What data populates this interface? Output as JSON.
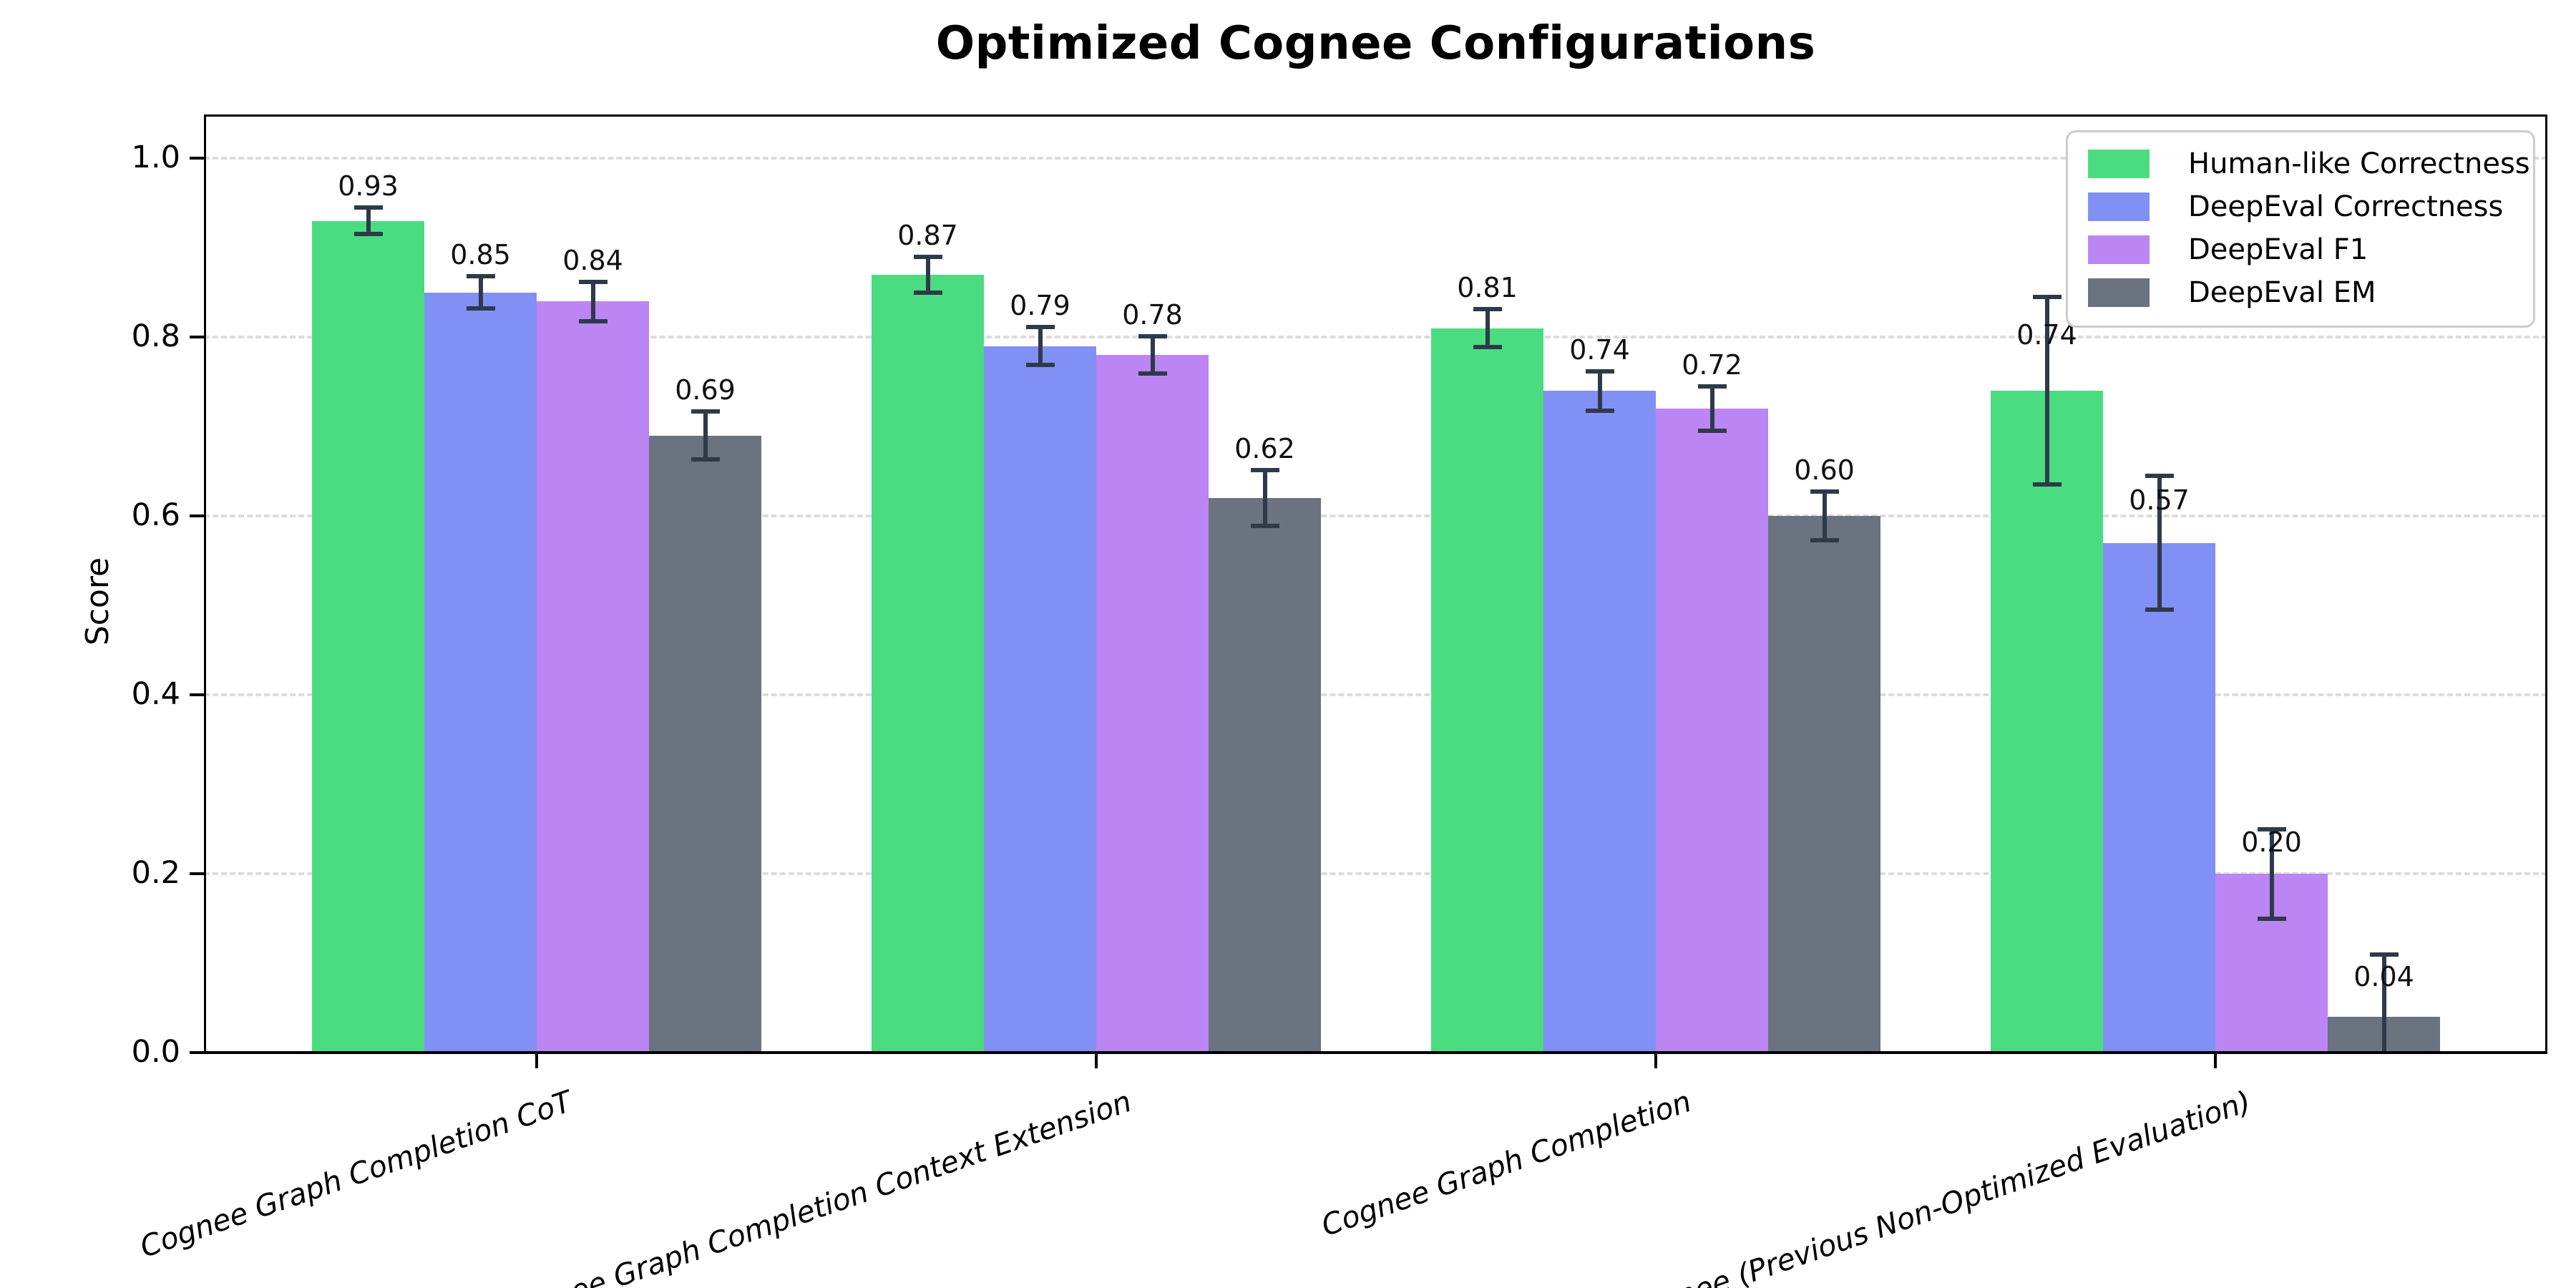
{
  "title": "Optimized Cognee Configurations",
  "chart_data": {
    "type": "bar",
    "title": "Optimized Cognee Configurations",
    "xlabel": "",
    "ylabel": "Score",
    "categories": [
      "Cognee Graph Completion CoT",
      "Cognee Graph Completion Context Extension",
      "Cognee Graph Completion",
      "Cognee (Previous Non-Optimized Evaluation)"
    ],
    "series": [
      {
        "name": "Human-like Correctness",
        "color": "#4bdc81",
        "values": [
          0.93,
          0.87,
          0.81,
          0.74
        ],
        "errors": [
          0.015,
          0.02,
          0.021,
          0.105
        ]
      },
      {
        "name": "DeepEval Correctness",
        "color": "#8190f4",
        "values": [
          0.85,
          0.79,
          0.74,
          0.57
        ],
        "errors": [
          0.018,
          0.021,
          0.022,
          0.075
        ]
      },
      {
        "name": "DeepEval F1",
        "color": "#bb85f3",
        "values": [
          0.84,
          0.78,
          0.72,
          0.2
        ],
        "errors": [
          0.022,
          0.021,
          0.025,
          0.05
        ]
      },
      {
        "name": "DeepEval EM",
        "color": "#6b7280",
        "values": [
          0.69,
          0.62,
          0.6,
          0.04
        ],
        "errors": [
          0.027,
          0.031,
          0.027,
          0.07
        ]
      }
    ],
    "bar_value_labels": [
      [
        "0.93",
        "0.87",
        "0.81",
        "0.74"
      ],
      [
        "0.85",
        "0.79",
        "0.74",
        "0.57"
      ],
      [
        "0.84",
        "0.78",
        "0.72",
        "0.20"
      ],
      [
        "0.69",
        "0.62",
        "0.60",
        "0.04"
      ]
    ],
    "yticks": [
      "0.0",
      "0.2",
      "0.4",
      "0.6",
      "0.8",
      "1.0"
    ],
    "ylim": [
      0,
      1.05
    ],
    "grid": "horizontal-dashed",
    "legend_position": "upper-right",
    "style": {
      "error_bar_color": "#2e3a49",
      "grid_color": "#dcdcdc",
      "axis_color": "#000000",
      "background": "#ffffff"
    }
  }
}
